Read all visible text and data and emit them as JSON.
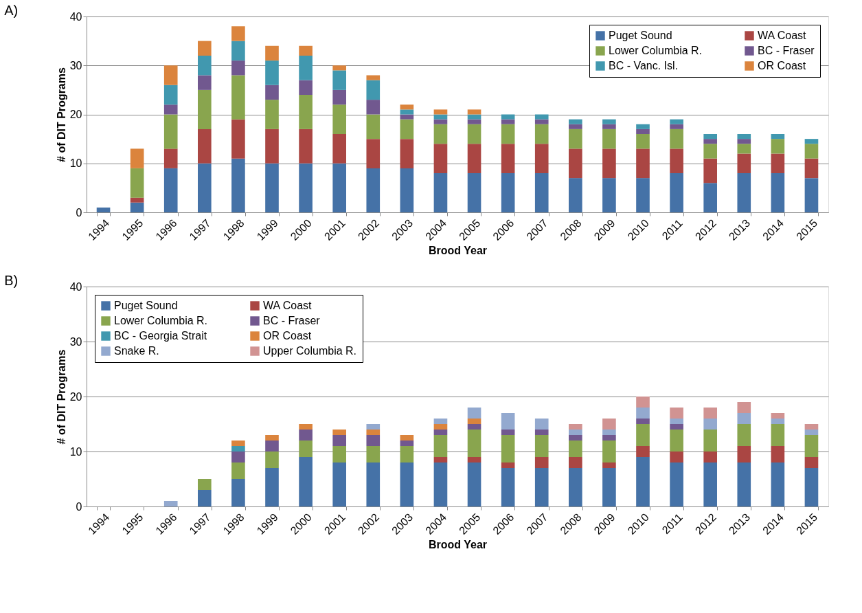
{
  "chart_data": [
    {
      "type": "bar",
      "stacked": true,
      "title": "A)",
      "xlabel": "Brood Year",
      "ylabel": "# of DIT Programs",
      "ylim": [
        0,
        40
      ],
      "yticks": [
        0,
        10,
        20,
        30,
        40
      ],
      "grid": "y",
      "legend": "top right",
      "categories": [
        "1994",
        "1995",
        "1996",
        "1997",
        "1998",
        "1999",
        "2000",
        "2001",
        "2002",
        "2003",
        "2004",
        "2005",
        "2006",
        "2007",
        "2008",
        "2009",
        "2010",
        "2011",
        "2012",
        "2013",
        "2014",
        "2015"
      ],
      "series": [
        {
          "name": "Puget Sound",
          "color": "#4572a7",
          "values": [
            1,
            2,
            9,
            10,
            11,
            10,
            10,
            10,
            9,
            9,
            8,
            8,
            8,
            8,
            7,
            7,
            7,
            8,
            6,
            8,
            8,
            7
          ]
        },
        {
          "name": "WA Coast",
          "color": "#aa4643",
          "values": [
            null,
            1,
            4,
            7,
            8,
            7,
            7,
            6,
            6,
            6,
            6,
            6,
            6,
            6,
            6,
            6,
            6,
            5,
            5,
            4,
            4,
            4
          ]
        },
        {
          "name": "Lower Columbia R.",
          "color": "#89a54e",
          "values": [
            null,
            6,
            7,
            8,
            9,
            6,
            7,
            6,
            5,
            4,
            4,
            4,
            4,
            4,
            4,
            4,
            3,
            4,
            3,
            2,
            3,
            3
          ]
        },
        {
          "name": "BC - Fraser",
          "color": "#71588f",
          "values": [
            null,
            null,
            2,
            3,
            3,
            3,
            3,
            3,
            3,
            1,
            1,
            1,
            1,
            1,
            1,
            1,
            1,
            1,
            1,
            1,
            null,
            null
          ]
        },
        {
          "name": "BC - Vanc. Isl.",
          "color": "#4198af",
          "values": [
            null,
            null,
            4,
            4,
            4,
            5,
            5,
            4,
            4,
            1,
            1,
            1,
            1,
            1,
            1,
            1,
            1,
            1,
            1,
            1,
            1,
            1
          ]
        },
        {
          "name": "OR Coast",
          "color": "#db843d",
          "values": [
            null,
            4,
            4,
            3,
            3,
            3,
            2,
            1,
            1,
            1,
            1,
            1,
            null,
            null,
            null,
            null,
            null,
            null,
            null,
            null,
            null,
            null
          ]
        }
      ]
    },
    {
      "type": "bar",
      "stacked": true,
      "title": "B)",
      "xlabel": "Brood Year",
      "ylabel": "# of DIT Programs",
      "ylim": [
        0,
        40
      ],
      "yticks": [
        0,
        10,
        20,
        30,
        40
      ],
      "grid": "y",
      "legend": "top left",
      "categories": [
        "1994",
        "1995",
        "1996",
        "1997",
        "1998",
        "1999",
        "2000",
        "2001",
        "2002",
        "2003",
        "2004",
        "2005",
        "2006",
        "2007",
        "2008",
        "2009",
        "2010",
        "2011",
        "2012",
        "2013",
        "2014",
        "2015"
      ],
      "series": [
        {
          "name": "Puget Sound",
          "color": "#4572a7",
          "values": [
            null,
            null,
            null,
            3,
            5,
            7,
            9,
            8,
            8,
            8,
            8,
            8,
            7,
            7,
            7,
            7,
            9,
            8,
            8,
            8,
            8,
            7
          ]
        },
        {
          "name": "WA Coast",
          "color": "#aa4643",
          "values": [
            null,
            null,
            null,
            null,
            null,
            null,
            null,
            null,
            null,
            null,
            1,
            1,
            1,
            2,
            2,
            1,
            2,
            2,
            2,
            3,
            3,
            2
          ]
        },
        {
          "name": "Lower Columbia R.",
          "color": "#89a54e",
          "values": [
            null,
            null,
            null,
            2,
            3,
            3,
            3,
            3,
            3,
            3,
            4,
            5,
            5,
            4,
            3,
            4,
            4,
            4,
            4,
            4,
            4,
            4
          ]
        },
        {
          "name": "BC - Fraser",
          "color": "#71588f",
          "values": [
            null,
            null,
            null,
            null,
            2,
            2,
            2,
            2,
            2,
            1,
            1,
            1,
            1,
            1,
            1,
            1,
            1,
            1,
            null,
            null,
            null,
            null
          ]
        },
        {
          "name": "BC - Georgia Strait",
          "color": "#4198af",
          "values": [
            null,
            null,
            null,
            null,
            1,
            null,
            null,
            null,
            null,
            null,
            null,
            null,
            null,
            null,
            null,
            null,
            null,
            null,
            null,
            null,
            null,
            null
          ]
        },
        {
          "name": "OR Coast",
          "color": "#db843d",
          "values": [
            null,
            null,
            null,
            null,
            1,
            1,
            1,
            1,
            1,
            1,
            1,
            1,
            null,
            null,
            null,
            null,
            null,
            null,
            null,
            null,
            null,
            null
          ]
        },
        {
          "name": "Snake R.",
          "color": "#93a9cf",
          "values": [
            null,
            null,
            1,
            null,
            null,
            null,
            null,
            null,
            1,
            null,
            1,
            2,
            3,
            2,
            1,
            1,
            2,
            1,
            2,
            2,
            1,
            1
          ]
        },
        {
          "name": "Upper Columbia R.",
          "color": "#d19392",
          "values": [
            null,
            null,
            null,
            null,
            null,
            null,
            null,
            null,
            null,
            null,
            null,
            null,
            null,
            null,
            1,
            2,
            2,
            2,
            2,
            2,
            1,
            1
          ]
        }
      ]
    }
  ]
}
